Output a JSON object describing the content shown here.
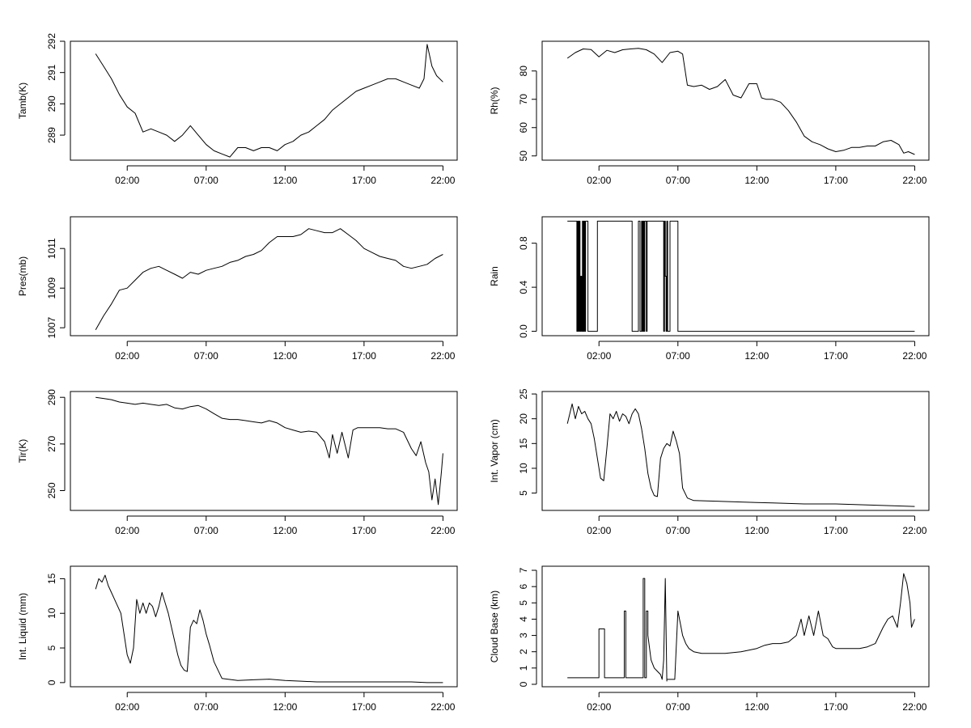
{
  "chart_data": [
    {
      "type": "line",
      "ylabel": "Tamb(K)",
      "x_ticks": [
        "02:00",
        "07:00",
        "12:00",
        "17:00",
        "22:00"
      ],
      "xlim_hours": [
        -1.6,
        22.9
      ],
      "ylim": [
        288.2,
        292.0
      ],
      "y_ticks": [
        289,
        290,
        291,
        292
      ],
      "series": [
        {
          "x_hours": [
            0.0,
            0.5,
            1.0,
            1.5,
            2.0,
            2.5,
            3.0,
            3.5,
            4.0,
            4.5,
            5.0,
            5.5,
            6.0,
            6.5,
            7.0,
            7.5,
            8.0,
            8.5,
            9.0,
            9.5,
            10.0,
            10.5,
            11.0,
            11.5,
            12.0,
            12.5,
            13.0,
            13.5,
            14.0,
            14.5,
            15.0,
            15.5,
            16.0,
            16.5,
            17.0,
            17.5,
            18.0,
            18.5,
            19.0,
            19.5,
            20.0,
            20.5,
            20.8,
            21.0,
            21.3,
            21.6,
            22.0
          ],
          "y": [
            291.6,
            291.2,
            290.8,
            290.3,
            289.9,
            289.7,
            289.1,
            289.2,
            289.1,
            289.0,
            288.8,
            289.0,
            289.3,
            289.0,
            288.7,
            288.5,
            288.4,
            288.3,
            288.6,
            288.6,
            288.5,
            288.6,
            288.6,
            288.5,
            288.7,
            288.8,
            289.0,
            289.1,
            289.3,
            289.5,
            289.8,
            290.0,
            290.2,
            290.4,
            290.5,
            290.6,
            290.7,
            290.8,
            290.8,
            290.7,
            290.6,
            290.5,
            290.8,
            291.9,
            291.2,
            290.9,
            290.7
          ]
        }
      ]
    },
    {
      "type": "line",
      "ylabel": "Rh(%)",
      "x_ticks": [
        "02:00",
        "07:00",
        "12:00",
        "17:00",
        "22:00"
      ],
      "xlim_hours": [
        -1.6,
        22.9
      ],
      "ylim": [
        48.5,
        90.5
      ],
      "y_ticks": [
        50,
        60,
        70,
        80
      ],
      "series": [
        {
          "x_hours": [
            0.0,
            0.5,
            1.0,
            1.5,
            2.0,
            2.5,
            3.0,
            3.5,
            4.0,
            4.5,
            5.0,
            5.5,
            6.0,
            6.5,
            7.0,
            7.3,
            7.6,
            8.0,
            8.5,
            9.0,
            9.5,
            10.0,
            10.5,
            11.0,
            11.5,
            12.0,
            12.3,
            12.6,
            13.0,
            13.5,
            14.0,
            14.5,
            15.0,
            15.5,
            16.0,
            16.5,
            17.0,
            17.5,
            18.0,
            18.5,
            19.0,
            19.5,
            20.0,
            20.5,
            21.0,
            21.3,
            21.6,
            22.0
          ],
          "y": [
            84.5,
            86.5,
            87.8,
            87.6,
            85.0,
            87.3,
            86.5,
            87.5,
            87.8,
            88.0,
            87.5,
            86.0,
            83.0,
            86.5,
            87.0,
            86.0,
            75.0,
            74.5,
            75.0,
            73.5,
            74.5,
            77.0,
            71.5,
            70.5,
            75.5,
            75.5,
            70.5,
            70.0,
            70.0,
            69.0,
            66.0,
            62.0,
            57.0,
            55.0,
            54.0,
            52.5,
            51.5,
            52.0,
            53.0,
            53.0,
            53.5,
            53.5,
            55.0,
            55.5,
            54.0,
            51.0,
            51.5,
            50.5
          ]
        }
      ]
    },
    {
      "type": "line",
      "ylabel": "Pres(mb)",
      "x_ticks": [
        "02:00",
        "07:00",
        "12:00",
        "17:00",
        "22:00"
      ],
      "xlim_hours": [
        -1.6,
        22.9
      ],
      "ylim": [
        1006.6,
        1012.6
      ],
      "y_ticks": [
        1007,
        1009,
        1011
      ],
      "series": [
        {
          "x_hours": [
            0.0,
            0.5,
            1.0,
            1.5,
            2.0,
            2.5,
            3.0,
            3.5,
            4.0,
            4.5,
            5.0,
            5.5,
            6.0,
            6.5,
            7.0,
            7.5,
            8.0,
            8.5,
            9.0,
            9.5,
            10.0,
            10.5,
            11.0,
            11.5,
            12.0,
            12.5,
            13.0,
            13.5,
            14.0,
            14.5,
            15.0,
            15.5,
            16.0,
            16.5,
            17.0,
            17.5,
            18.0,
            18.5,
            19.0,
            19.5,
            20.0,
            20.5,
            21.0,
            21.5,
            22.0
          ],
          "y": [
            1006.9,
            1007.6,
            1008.2,
            1008.9,
            1009.0,
            1009.4,
            1009.8,
            1010.0,
            1010.1,
            1009.9,
            1009.7,
            1009.5,
            1009.8,
            1009.7,
            1009.9,
            1010.0,
            1010.1,
            1010.3,
            1010.4,
            1010.6,
            1010.7,
            1010.9,
            1011.3,
            1011.6,
            1011.6,
            1011.6,
            1011.7,
            1012.0,
            1011.9,
            1011.8,
            1011.8,
            1012.0,
            1011.7,
            1011.4,
            1011.0,
            1010.8,
            1010.6,
            1010.5,
            1010.4,
            1010.1,
            1010.0,
            1010.1,
            1010.2,
            1010.5,
            1010.7
          ]
        }
      ]
    },
    {
      "type": "line",
      "ylabel": "Rain",
      "x_ticks": [
        "02:00",
        "07:00",
        "12:00",
        "17:00",
        "22:00"
      ],
      "xlim_hours": [
        -1.6,
        22.9
      ],
      "ylim": [
        -0.04,
        1.04
      ],
      "y_ticks": [
        "0.0",
        "0.4",
        "0.8"
      ],
      "series": [
        {
          "x_hours": [
            0.0,
            0.6,
            0.6,
            0.65,
            0.65,
            0.7,
            0.7,
            0.75,
            0.75,
            0.8,
            0.8,
            0.85,
            0.85,
            0.9,
            0.9,
            0.95,
            0.95,
            1.0,
            1.0,
            1.05,
            1.05,
            1.1,
            1.1,
            1.15,
            1.15,
            1.3,
            1.3,
            1.9,
            1.9,
            2.4,
            2.4,
            4.1,
            4.1,
            4.5,
            4.5,
            4.6,
            4.6,
            4.7,
            4.7,
            4.75,
            4.75,
            4.8,
            4.8,
            4.85,
            4.85,
            4.9,
            4.9,
            5.0,
            5.0,
            5.05,
            5.05,
            6.1,
            6.1,
            6.15,
            6.15,
            6.2,
            6.2,
            6.25,
            6.25,
            6.3,
            6.3,
            6.35,
            6.35,
            6.5,
            6.5,
            6.6,
            6.6,
            7.0,
            7.0,
            22.0
          ],
          "y": [
            1,
            1,
            0,
            0,
            1,
            1,
            0,
            0,
            1,
            1,
            0,
            0,
            0.5,
            0.5,
            0,
            0,
            1,
            1,
            0,
            0,
            1,
            1,
            0,
            0,
            1,
            1,
            0,
            0,
            1,
            1,
            1,
            1,
            0,
            0,
            1,
            1,
            0,
            0,
            1,
            1,
            0,
            0,
            1,
            1,
            0,
            0,
            1,
            1,
            0,
            0,
            1,
            1,
            0,
            0,
            1,
            1,
            0.5,
            0.5,
            0,
            0,
            1,
            1,
            0,
            0,
            1,
            1,
            1,
            1,
            0,
            0
          ]
        }
      ]
    },
    {
      "type": "line",
      "ylabel": "Tir(K)",
      "x_ticks": [
        "02:00",
        "07:00",
        "12:00",
        "17:00",
        "22:00"
      ],
      "xlim_hours": [
        -1.6,
        22.9
      ],
      "ylim": [
        241.5,
        292.5
      ],
      "y_ticks": [
        250,
        270,
        290
      ],
      "series": [
        {
          "x_hours": [
            0.0,
            0.5,
            1.0,
            1.5,
            2.0,
            2.5,
            3.0,
            3.5,
            4.0,
            4.5,
            5.0,
            5.5,
            6.0,
            6.5,
            7.0,
            7.5,
            8.0,
            8.5,
            9.0,
            9.5,
            10.0,
            10.5,
            11.0,
            11.5,
            12.0,
            12.5,
            13.0,
            13.5,
            14.0,
            14.5,
            14.8,
            15.0,
            15.3,
            15.6,
            16.0,
            16.3,
            16.6,
            17.0,
            17.5,
            18.0,
            18.5,
            19.0,
            19.5,
            20.0,
            20.3,
            20.6,
            20.9,
            21.1,
            21.3,
            21.5,
            21.7,
            21.9,
            22.0
          ],
          "y": [
            290.0,
            289.5,
            289.0,
            288.0,
            287.5,
            287.0,
            287.5,
            287.0,
            286.5,
            287.0,
            285.5,
            285.0,
            286.0,
            286.5,
            285.0,
            283.0,
            281.0,
            280.5,
            280.5,
            280.0,
            279.5,
            279.0,
            280.0,
            279.0,
            277.0,
            276.0,
            275.0,
            275.5,
            275.0,
            271.0,
            264.0,
            274.0,
            266.0,
            275.0,
            264.0,
            276.0,
            277.0,
            277.0,
            277.0,
            277.0,
            276.5,
            276.5,
            275.0,
            268.0,
            265.0,
            271.0,
            262.0,
            258.0,
            246.0,
            255.0,
            244.0,
            258.0,
            266.0
          ]
        }
      ]
    },
    {
      "type": "line",
      "ylabel": "Int. Vapor (cm)",
      "x_ticks": [
        "02:00",
        "07:00",
        "12:00",
        "17:00",
        "22:00"
      ],
      "xlim_hours": [
        -1.6,
        22.9
      ],
      "ylim": [
        1.5,
        25.5
      ],
      "y_ticks": [
        5,
        10,
        15,
        20,
        25
      ],
      "series": [
        {
          "x_hours": [
            0.0,
            0.3,
            0.5,
            0.7,
            0.9,
            1.1,
            1.3,
            1.5,
            1.7,
            1.9,
            2.1,
            2.3,
            2.5,
            2.7,
            2.9,
            3.1,
            3.3,
            3.5,
            3.7,
            3.9,
            4.1,
            4.3,
            4.5,
            4.7,
            4.9,
            5.1,
            5.3,
            5.5,
            5.7,
            5.9,
            6.1,
            6.3,
            6.5,
            6.7,
            6.9,
            7.1,
            7.3,
            7.6,
            8.0,
            9.0,
            10.0,
            11.0,
            12.0,
            13.0,
            14.0,
            15.0,
            16.0,
            17.0,
            18.0,
            19.0,
            20.0,
            21.0,
            22.0
          ],
          "y": [
            19.0,
            23.0,
            20.0,
            22.5,
            21.0,
            21.5,
            20.0,
            19.0,
            16.0,
            12.0,
            8.0,
            7.5,
            14.0,
            21.0,
            20.0,
            21.5,
            19.5,
            21.0,
            20.5,
            19.0,
            21.0,
            22.0,
            21.0,
            18.0,
            14.0,
            9.0,
            6.0,
            4.5,
            4.3,
            12.0,
            14.0,
            15.0,
            14.5,
            17.5,
            15.5,
            13.0,
            6.0,
            4.0,
            3.5,
            3.4,
            3.3,
            3.2,
            3.1,
            3.0,
            2.9,
            2.8,
            2.8,
            2.8,
            2.7,
            2.6,
            2.5,
            2.4,
            2.3
          ]
        }
      ]
    },
    {
      "type": "line",
      "ylabel": "Int. Liquid (mm)",
      "x_ticks": [
        "02:00",
        "07:00",
        "12:00",
        "17:00",
        "22:00"
      ],
      "xlim_hours": [
        -1.6,
        22.9
      ],
      "ylim": [
        -0.6,
        16.8
      ],
      "y_ticks": [
        0,
        5,
        10,
        15
      ],
      "series": [
        {
          "x_hours": [
            0.0,
            0.2,
            0.4,
            0.6,
            0.8,
            1.0,
            1.2,
            1.4,
            1.6,
            1.8,
            2.0,
            2.2,
            2.4,
            2.6,
            2.8,
            3.0,
            3.2,
            3.4,
            3.6,
            3.8,
            4.0,
            4.2,
            4.4,
            4.6,
            4.8,
            5.0,
            5.2,
            5.4,
            5.6,
            5.8,
            6.0,
            6.2,
            6.4,
            6.6,
            6.8,
            7.0,
            7.2,
            7.5,
            8.0,
            9.0,
            10.0,
            11.0,
            12.0,
            13.0,
            14.0,
            15.0,
            16.0,
            17.0,
            18.0,
            19.0,
            20.0,
            21.0,
            22.0
          ],
          "y": [
            13.5,
            15.0,
            14.5,
            15.5,
            14.0,
            13.0,
            12.0,
            11.0,
            10.0,
            7.0,
            4.0,
            2.8,
            5.0,
            12.0,
            10.0,
            11.5,
            10.0,
            11.5,
            11.0,
            9.5,
            11.0,
            13.0,
            11.5,
            10.0,
            8.0,
            6.0,
            4.0,
            2.5,
            1.8,
            1.6,
            8.0,
            9.0,
            8.5,
            10.5,
            9.0,
            7.0,
            5.5,
            3.0,
            0.6,
            0.3,
            0.4,
            0.5,
            0.3,
            0.2,
            0.1,
            0.1,
            0.1,
            0.1,
            0.1,
            0.1,
            0.1,
            0.0,
            0.0
          ]
        }
      ]
    },
    {
      "type": "line",
      "ylabel": "Cloud Base (km)",
      "x_ticks": [
        "02:00",
        "07:00",
        "12:00",
        "17:00",
        "22:00"
      ],
      "xlim_hours": [
        -1.6,
        22.9
      ],
      "ylim": [
        -0.15,
        7.25
      ],
      "y_ticks": [
        0,
        1,
        2,
        3,
        4,
        5,
        6,
        7
      ],
      "series": [
        {
          "x_hours": [
            0.0,
            2.0,
            2.0,
            2.35,
            2.35,
            3.6,
            3.6,
            3.7,
            3.7,
            4.8,
            4.8,
            4.9,
            4.9,
            5.0,
            5.0,
            5.1,
            5.1,
            5.3,
            5.5,
            5.7,
            5.9,
            6.0,
            6.1,
            6.2,
            6.2,
            6.3,
            6.3,
            6.6,
            6.8,
            7.0,
            7.2,
            7.3,
            7.5,
            7.7,
            8.0,
            8.5,
            9.0,
            10.0,
            11.0,
            12.0,
            12.5,
            13.0,
            13.5,
            14.0,
            14.5,
            14.8,
            15.0,
            15.3,
            15.6,
            15.9,
            16.2,
            16.5,
            16.8,
            17.0,
            17.5,
            18.0,
            18.5,
            19.0,
            19.5,
            20.0,
            20.3,
            20.6,
            20.9,
            21.1,
            21.3,
            21.5,
            21.7,
            21.8,
            22.0
          ],
          "y": [
            0.4,
            0.4,
            3.4,
            3.4,
            0.4,
            0.4,
            4.5,
            4.5,
            0.4,
            0.4,
            6.5,
            6.5,
            0.4,
            0.4,
            4.5,
            4.5,
            3.0,
            1.5,
            1.0,
            0.8,
            0.6,
            0.3,
            1.5,
            6.5,
            6.5,
            0.2,
            0.3,
            0.3,
            0.3,
            4.5,
            3.5,
            3.0,
            2.5,
            2.2,
            2.0,
            1.9,
            1.9,
            1.9,
            2.0,
            2.2,
            2.4,
            2.5,
            2.5,
            2.6,
            3.0,
            4.0,
            3.0,
            4.2,
            3.0,
            4.5,
            3.0,
            2.8,
            2.3,
            2.2,
            2.2,
            2.2,
            2.2,
            2.3,
            2.5,
            3.5,
            4.0,
            4.2,
            3.5,
            5.0,
            6.8,
            6.2,
            5.0,
            3.5,
            4.0
          ]
        }
      ]
    }
  ]
}
